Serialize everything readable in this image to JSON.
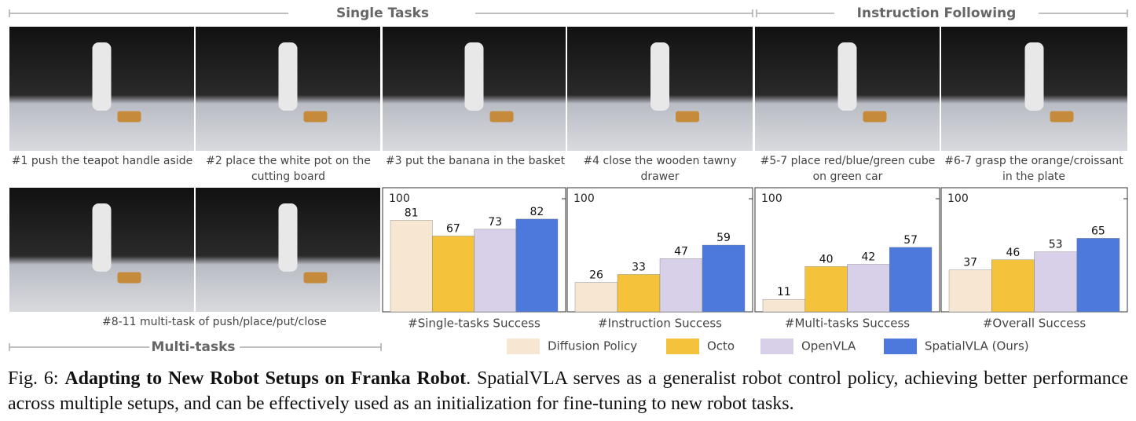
{
  "header": {
    "single": "Single Tasks",
    "instruction": "Instruction Following",
    "multi": "Multi-tasks"
  },
  "photos": [
    "#1 push the teapot handle aside",
    "#2 place the white pot on the cutting board",
    "#3 put the banana in the basket",
    "#4 close the wooden tawny drawer",
    "#5-7 place red/blue/green cube on green car",
    "#6-7 grasp the orange/croissant in the plate",
    "#8-11 multi-task of push/place/put/close"
  ],
  "legend": [
    {
      "name": "Diffusion Policy",
      "color": "#f6e6d2"
    },
    {
      "name": "Octo",
      "color": "#f5c33b"
    },
    {
      "name": "OpenVLA",
      "color": "#d8d0e8"
    },
    {
      "name": "SpatialVLA (Ours)",
      "color": "#4e79dc"
    }
  ],
  "chart_data": [
    {
      "type": "bar",
      "xlabel": "#Single-tasks Success",
      "values": [
        81,
        67,
        73,
        82
      ],
      "ylim": [
        0,
        100
      ],
      "yticks": [
        100
      ]
    },
    {
      "type": "bar",
      "xlabel": "#Instruction Success",
      "values": [
        26,
        33,
        47,
        59
      ],
      "ylim": [
        0,
        100
      ],
      "yticks": [
        100
      ]
    },
    {
      "type": "bar",
      "xlabel": "#Multi-tasks Success",
      "values": [
        11,
        40,
        42,
        57
      ],
      "ylim": [
        0,
        100
      ],
      "yticks": [
        100
      ]
    },
    {
      "type": "bar",
      "xlabel": "#Overall  Success",
      "values": [
        37,
        46,
        53,
        65
      ],
      "ylim": [
        0,
        100
      ],
      "yticks": [
        100
      ]
    }
  ],
  "caption": {
    "label": "Fig. 6: ",
    "title": "Adapting to New Robot Setups on Franka Robot",
    "text": ". SpatialVLA serves as a generalist robot control policy, achieving better performance across multiple setups, and can be effectively used as an initialization for fine-tuning to new robot tasks."
  }
}
